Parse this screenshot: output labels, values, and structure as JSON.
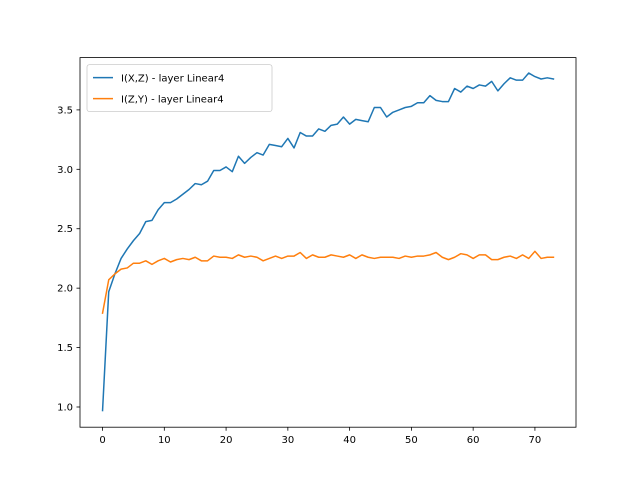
{
  "chart_data": {
    "type": "line",
    "title": "",
    "xlabel": "",
    "ylabel": "",
    "xlim": [
      -3.65,
      76.65
    ],
    "ylim": [
      0.83,
      3.94
    ],
    "xticks": [
      0,
      10,
      20,
      30,
      40,
      50,
      60,
      70
    ],
    "yticks": [
      1.0,
      1.5,
      2.0,
      2.5,
      3.0,
      3.5
    ],
    "ytick_labels": [
      "1.0",
      "1.5",
      "2.0",
      "2.5",
      "3.0",
      "3.5"
    ],
    "grid": false,
    "legend_position": "upper-left",
    "series": [
      {
        "name": "I(X,Z) - layer Linear4",
        "color": "#1f77b4",
        "x": [
          0,
          1,
          2,
          3,
          4,
          5,
          6,
          7,
          8,
          9,
          10,
          11,
          12,
          13,
          14,
          15,
          16,
          17,
          18,
          19,
          20,
          21,
          22,
          23,
          24,
          25,
          26,
          27,
          28,
          29,
          30,
          31,
          32,
          33,
          34,
          35,
          36,
          37,
          38,
          39,
          40,
          41,
          42,
          43,
          44,
          45,
          46,
          47,
          48,
          49,
          50,
          51,
          52,
          53,
          54,
          55,
          56,
          57,
          58,
          59,
          60,
          61,
          62,
          63,
          64,
          65,
          66,
          67,
          68,
          69,
          70,
          71,
          72,
          73
        ],
        "values": [
          0.97,
          1.97,
          2.12,
          2.25,
          2.33,
          2.4,
          2.46,
          2.56,
          2.57,
          2.66,
          2.72,
          2.72,
          2.75,
          2.79,
          2.83,
          2.88,
          2.87,
          2.9,
          2.99,
          2.99,
          3.02,
          2.98,
          3.11,
          3.05,
          3.1,
          3.14,
          3.12,
          3.21,
          3.2,
          3.19,
          3.26,
          3.18,
          3.31,
          3.28,
          3.28,
          3.34,
          3.32,
          3.37,
          3.38,
          3.44,
          3.38,
          3.42,
          3.41,
          3.4,
          3.52,
          3.52,
          3.44,
          3.48,
          3.5,
          3.52,
          3.53,
          3.56,
          3.56,
          3.62,
          3.58,
          3.57,
          3.57,
          3.68,
          3.65,
          3.7,
          3.68,
          3.71,
          3.7,
          3.74,
          3.66,
          3.72,
          3.77,
          3.75,
          3.75,
          3.81,
          3.78,
          3.76,
          3.77,
          3.76
        ]
      },
      {
        "name": "I(Z,Y) - layer Linear4",
        "color": "#ff7f0e",
        "x": [
          0,
          1,
          2,
          3,
          4,
          5,
          6,
          7,
          8,
          9,
          10,
          11,
          12,
          13,
          14,
          15,
          16,
          17,
          18,
          19,
          20,
          21,
          22,
          23,
          24,
          25,
          26,
          27,
          28,
          29,
          30,
          31,
          32,
          33,
          34,
          35,
          36,
          37,
          38,
          39,
          40,
          41,
          42,
          43,
          44,
          45,
          46,
          47,
          48,
          49,
          50,
          51,
          52,
          53,
          54,
          55,
          56,
          57,
          58,
          59,
          60,
          61,
          62,
          63,
          64,
          65,
          66,
          67,
          68,
          69,
          70,
          71,
          72,
          73
        ],
        "values": [
          1.79,
          2.07,
          2.12,
          2.16,
          2.17,
          2.21,
          2.21,
          2.23,
          2.2,
          2.23,
          2.25,
          2.22,
          2.24,
          2.25,
          2.24,
          2.26,
          2.23,
          2.23,
          2.27,
          2.26,
          2.26,
          2.25,
          2.28,
          2.26,
          2.27,
          2.26,
          2.23,
          2.25,
          2.27,
          2.25,
          2.27,
          2.27,
          2.3,
          2.25,
          2.28,
          2.26,
          2.26,
          2.28,
          2.27,
          2.26,
          2.28,
          2.25,
          2.28,
          2.26,
          2.25,
          2.26,
          2.26,
          2.26,
          2.25,
          2.27,
          2.26,
          2.27,
          2.27,
          2.28,
          2.3,
          2.26,
          2.24,
          2.26,
          2.29,
          2.28,
          2.25,
          2.28,
          2.28,
          2.24,
          2.24,
          2.26,
          2.27,
          2.25,
          2.28,
          2.25,
          2.31,
          2.25,
          2.26,
          2.26
        ]
      }
    ]
  }
}
